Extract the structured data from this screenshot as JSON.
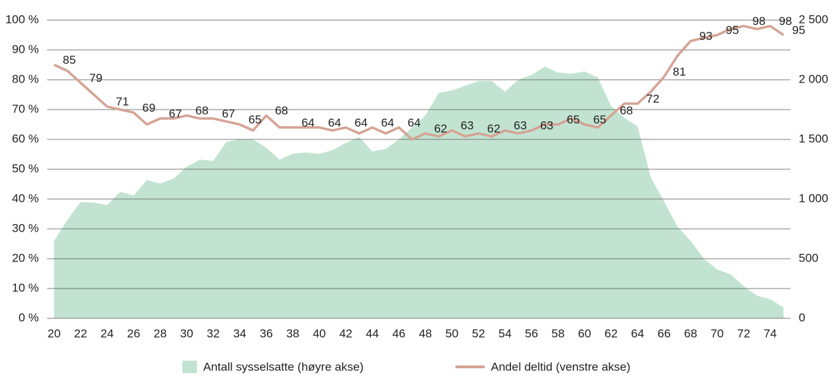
{
  "chart_data": {
    "type": "combo",
    "x": [
      20,
      21,
      22,
      23,
      24,
      25,
      26,
      27,
      28,
      29,
      30,
      31,
      32,
      33,
      34,
      35,
      36,
      37,
      38,
      39,
      40,
      41,
      42,
      43,
      44,
      45,
      46,
      47,
      48,
      49,
      50,
      51,
      52,
      53,
      54,
      55,
      56,
      57,
      58,
      59,
      60,
      61,
      62,
      63,
      64,
      65,
      66,
      67,
      68,
      69,
      70,
      71,
      72,
      73,
      74,
      75
    ],
    "xlim": [
      20,
      75
    ],
    "xticks": [
      20,
      22,
      24,
      26,
      28,
      30,
      32,
      34,
      36,
      38,
      40,
      42,
      44,
      46,
      48,
      50,
      52,
      54,
      56,
      58,
      60,
      62,
      64,
      66,
      68,
      70,
      72,
      74
    ],
    "ylim": [
      0,
      100
    ],
    "yticks": [
      {
        "value": 0,
        "label": "0 %"
      },
      {
        "value": 10,
        "label": "10 %"
      },
      {
        "value": 20,
        "label": "20 %"
      },
      {
        "value": 30,
        "label": "30 %"
      },
      {
        "value": 40,
        "label": "40 %"
      },
      {
        "value": 50,
        "label": "50 %"
      },
      {
        "value": 60,
        "label": "60 %"
      },
      {
        "value": 70,
        "label": "70 %"
      },
      {
        "value": 80,
        "label": "80 %"
      },
      {
        "value": 90,
        "label": "90 %"
      },
      {
        "value": 100,
        "label": "100 %"
      }
    ],
    "y2lim": [
      0,
      2500
    ],
    "y2ticks": [
      0,
      500,
      {
        "value": 1000,
        "label": "1 000"
      },
      {
        "value": 1500,
        "label": "1 500"
      },
      {
        "value": 2000,
        "label": "2 000"
      },
      {
        "value": 2500,
        "label": "2 500"
      }
    ],
    "grid": true,
    "legend": "bottom",
    "series": [
      {
        "name": "Antall sysselsatte (høyre akse)",
        "type": "area",
        "axis": "y2",
        "color": "#c2e3d1",
        "values": [
          650,
          825,
          975,
          970,
          950,
          1060,
          1030,
          1160,
          1130,
          1170,
          1270,
          1330,
          1320,
          1480,
          1500,
          1500,
          1430,
          1330,
          1380,
          1390,
          1380,
          1410,
          1470,
          1520,
          1400,
          1420,
          1500,
          1600,
          1700,
          1890,
          1910,
          1950,
          1990,
          1990,
          1900,
          2000,
          2040,
          2110,
          2060,
          2050,
          2070,
          2020,
          1780,
          1680,
          1610,
          1180,
          980,
          770,
          650,
          500,
          410,
          370,
          270,
          190,
          160,
          90
        ]
      },
      {
        "name": "Andel deltid (venstre akse)",
        "type": "line",
        "color": "#d4a394",
        "values": [
          85,
          83,
          79,
          75,
          71,
          70,
          69,
          65,
          67,
          67,
          68,
          67,
          67,
          66,
          65,
          63,
          68,
          64,
          64,
          64,
          64,
          63,
          64,
          62,
          64,
          62,
          64,
          60,
          62,
          61,
          63,
          61,
          62,
          61,
          63,
          62,
          63,
          65,
          65,
          67,
          65,
          64,
          68,
          72,
          72,
          76,
          81,
          88,
          93,
          94,
          95,
          97,
          98,
          97,
          98,
          95
        ]
      }
    ]
  }
}
